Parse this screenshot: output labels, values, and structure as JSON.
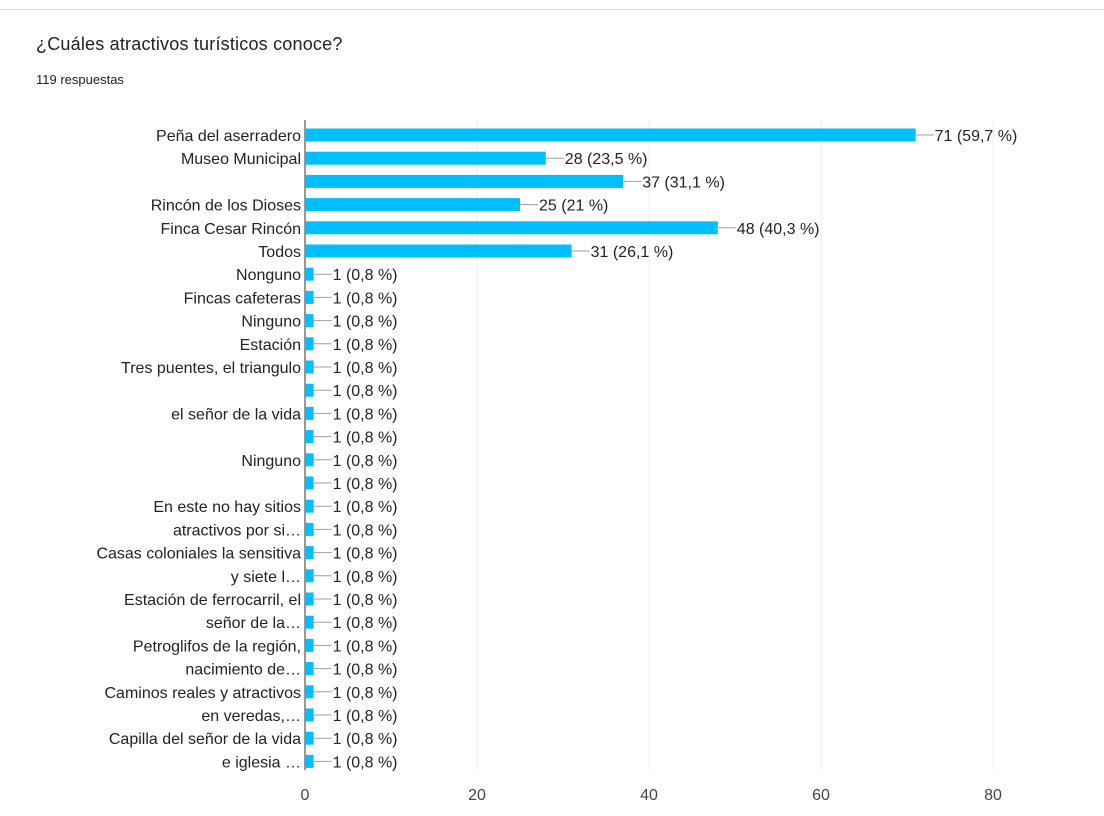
{
  "question": {
    "title": "¿Cuáles atractivos turísticos conoce?",
    "responses": "119 respuestas"
  },
  "colors": {
    "bar": "#00bfff",
    "text": "#222222",
    "grid": "#eeeeee",
    "axis": "#333333",
    "leader": "#9e9e9e"
  },
  "chart_data": {
    "type": "bar",
    "orientation": "horizontal",
    "title": "¿Cuáles atractivos turísticos conoce?",
    "xlim": [
      0,
      80
    ],
    "x_ticks": [
      0,
      20,
      40,
      60,
      80
    ],
    "grid": true,
    "legend": "none",
    "categories": [
      {
        "label": [
          "Peña del aserradero"
        ],
        "value": 71,
        "display": "71 (59,7 %)"
      },
      {
        "label": [
          "Museo Municipal"
        ],
        "value": 28,
        "display": "28 (23,5 %)"
      },
      {
        "label": [],
        "value": 37,
        "display": "37 (31,1 %)"
      },
      {
        "label": [
          "Rincón de los Dioses"
        ],
        "value": 25,
        "display": "25 (21 %)"
      },
      {
        "label": [
          "Finca Cesar Rincón"
        ],
        "value": 48,
        "display": "48 (40,3 %)"
      },
      {
        "label": [
          "Todos"
        ],
        "value": 31,
        "display": "31 (26,1 %)"
      },
      {
        "label": [
          "Nonguno"
        ],
        "value": 1,
        "display": "1 (0,8 %)"
      },
      {
        "label": [
          "Fincas cafeteras"
        ],
        "value": 1,
        "display": "1 (0,8 %)"
      },
      {
        "label": [
          "Ninguno"
        ],
        "value": 1,
        "display": "1 (0,8 %)"
      },
      {
        "label": [
          "Estación"
        ],
        "value": 1,
        "display": "1 (0,8 %)"
      },
      {
        "label": [
          "Tres puentes, el triangulo"
        ],
        "value": 1,
        "display": "1 (0,8 %)"
      },
      {
        "label": [],
        "value": 1,
        "display": "1 (0,8 %)"
      },
      {
        "label": [
          "el señor de la vida"
        ],
        "value": 1,
        "display": "1 (0,8 %)"
      },
      {
        "label": [],
        "value": 1,
        "display": "1 (0,8 %)"
      },
      {
        "label": [
          "Ninguno"
        ],
        "value": 1,
        "display": "1 (0,8 %)"
      },
      {
        "label": [],
        "value": 1,
        "display": "1 (0,8 %)"
      },
      {
        "label": [
          "En este no hay sitios",
          "atractivos por si…"
        ],
        "value": 1,
        "display": "1 (0,8 %)"
      },
      {
        "label": [],
        "value": 1,
        "display": "1 (0,8 %)"
      },
      {
        "label": [
          "Casas coloniales la sensitiva",
          "y siete l…"
        ],
        "value": 1,
        "display": "1 (0,8 %)"
      },
      {
        "label": [],
        "value": 1,
        "display": "1 (0,8 %)"
      },
      {
        "label": [
          "Estación de ferrocarril, el",
          "señor de la…"
        ],
        "value": 1,
        "display": "1 (0,8 %)"
      },
      {
        "label": [],
        "value": 1,
        "display": "1 (0,8 %)"
      },
      {
        "label": [
          "Petroglifos de la región,",
          "nacimiento de…"
        ],
        "value": 1,
        "display": "1 (0,8 %)"
      },
      {
        "label": [],
        "value": 1,
        "display": "1 (0,8 %)"
      },
      {
        "label": [
          "Caminos reales y atractivos",
          "en veredas,…"
        ],
        "value": 1,
        "display": "1 (0,8 %)"
      },
      {
        "label": [],
        "value": 1,
        "display": "1 (0,8 %)"
      },
      {
        "label": [
          "Capilla del señor de la vida",
          "e iglesia …"
        ],
        "value": 1,
        "display": "1 (0,8 %)"
      },
      {
        "label": [],
        "value": 1,
        "display": "1 (0,8 %)"
      }
    ]
  }
}
